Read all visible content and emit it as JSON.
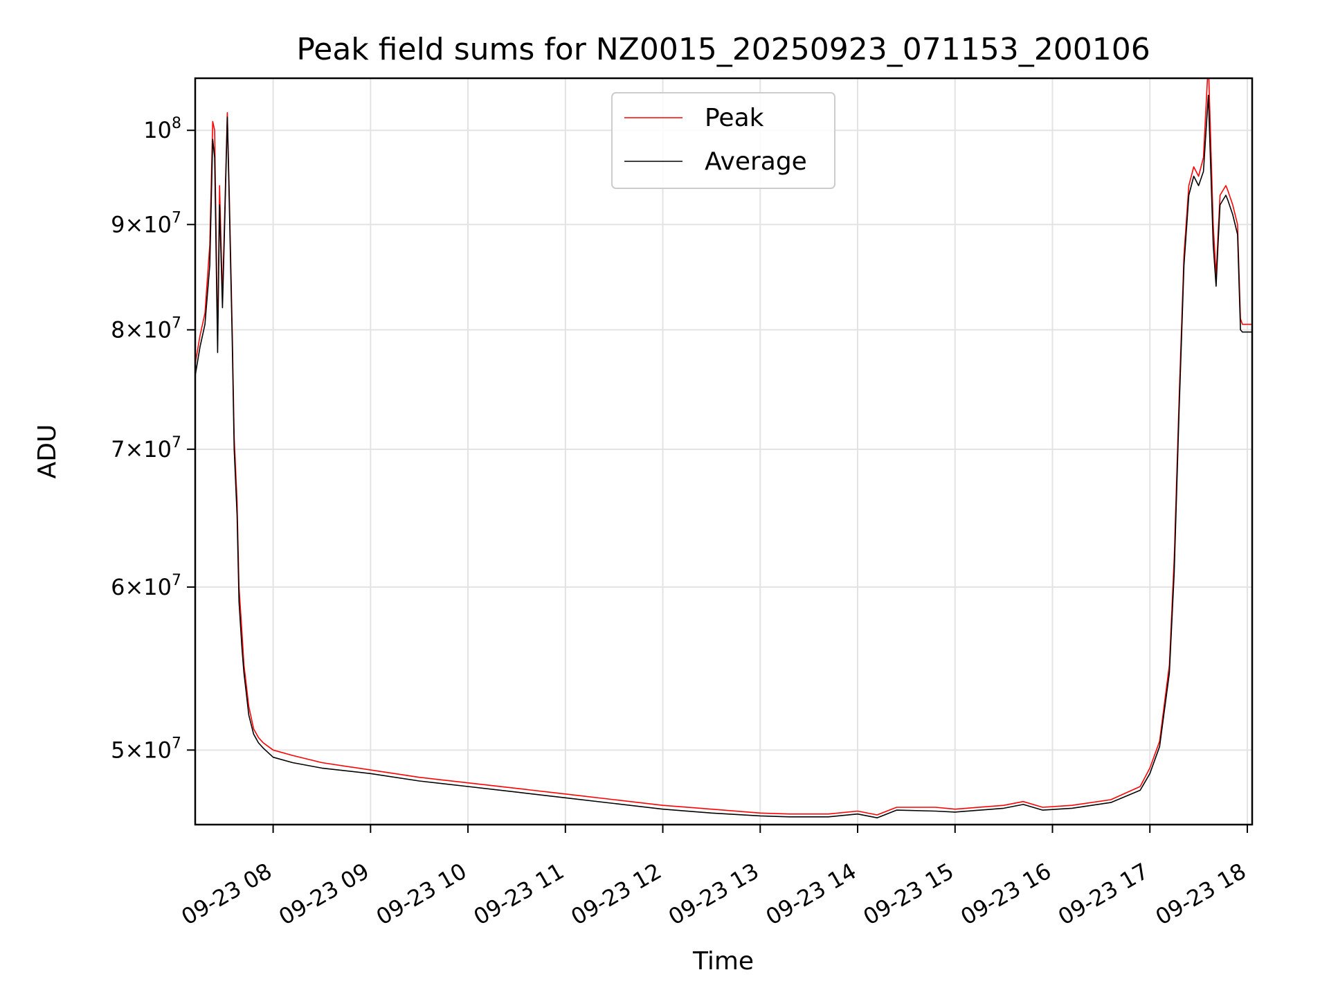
{
  "chart_data": {
    "type": "line",
    "title": "Peak field sums for NZ0015_20250923_071153_200106",
    "xlabel": "Time",
    "ylabel": "ADU",
    "yscale": "log",
    "xlim": [
      7.2,
      18.05
    ],
    "ylim": [
      46000000,
      106000000
    ],
    "grid": true,
    "legend_position": "top-center",
    "x_ticks": [
      {
        "value": 8,
        "label": "09-23 08"
      },
      {
        "value": 9,
        "label": "09-23 09"
      },
      {
        "value": 10,
        "label": "09-23 10"
      },
      {
        "value": 11,
        "label": "09-23 11"
      },
      {
        "value": 12,
        "label": "09-23 12"
      },
      {
        "value": 13,
        "label": "09-23 13"
      },
      {
        "value": 14,
        "label": "09-23 14"
      },
      {
        "value": 15,
        "label": "09-23 15"
      },
      {
        "value": 16,
        "label": "09-23 16"
      },
      {
        "value": 17,
        "label": "09-23 17"
      },
      {
        "value": 18,
        "label": "09-23 18"
      }
    ],
    "y_ticks": [
      {
        "value": 50000000,
        "mantissa": "5",
        "exponent": "7"
      },
      {
        "value": 60000000,
        "mantissa": "6",
        "exponent": "7"
      },
      {
        "value": 70000000,
        "mantissa": "7",
        "exponent": "7"
      },
      {
        "value": 80000000,
        "mantissa": "8",
        "exponent": "7"
      },
      {
        "value": 90000000,
        "mantissa": "9",
        "exponent": "7"
      },
      {
        "value": 100000000,
        "mantissa": "",
        "exponent": "8"
      }
    ],
    "series": [
      {
        "name": "Peak",
        "color": "#ff0000",
        "x": [
          7.2,
          7.25,
          7.3,
          7.35,
          7.38,
          7.4,
          7.43,
          7.45,
          7.48,
          7.5,
          7.53,
          7.55,
          7.58,
          7.6,
          7.63,
          7.65,
          7.68,
          7.7,
          7.72,
          7.75,
          7.8,
          7.85,
          7.9,
          8.0,
          8.2,
          8.5,
          9.0,
          9.5,
          10.0,
          10.5,
          11.0,
          11.5,
          12.0,
          12.5,
          13.0,
          13.3,
          13.7,
          14.0,
          14.2,
          14.4,
          14.8,
          15.0,
          15.5,
          15.7,
          15.9,
          16.2,
          16.6,
          16.9,
          17.0,
          17.1,
          17.2,
          17.25,
          17.3,
          17.35,
          17.4,
          17.45,
          17.5,
          17.55,
          17.6,
          17.65,
          17.68,
          17.7,
          17.72,
          17.75,
          17.78,
          17.8,
          17.85,
          17.9,
          17.93,
          17.95,
          17.98,
          18.05
        ],
        "values": [
          77000000,
          79500000,
          81500000,
          88000000,
          101000000,
          100000000,
          79000000,
          94000000,
          83000000,
          90000000,
          102000000,
          93000000,
          80000000,
          71000000,
          66000000,
          60000000,
          57000000,
          55000000,
          54000000,
          52500000,
          51200000,
          50700000,
          50400000,
          50000000,
          49700000,
          49300000,
          48900000,
          48500000,
          48200000,
          47900000,
          47600000,
          47300000,
          47000000,
          46800000,
          46600000,
          46550000,
          46550000,
          46700000,
          46500000,
          46900000,
          46900000,
          46800000,
          47000000,
          47200000,
          46900000,
          47000000,
          47300000,
          48000000,
          49000000,
          50500000,
          55000000,
          62000000,
          74000000,
          87000000,
          94000000,
          96000000,
          95000000,
          97000000,
          108000000,
          90000000,
          85000000,
          89000000,
          93000000,
          93500000,
          94000000,
          93500000,
          92000000,
          90000000,
          81000000,
          80500000,
          80500000,
          80500000
        ]
      },
      {
        "name": "Average",
        "color": "#000000",
        "x": [
          7.2,
          7.25,
          7.3,
          7.35,
          7.38,
          7.4,
          7.43,
          7.45,
          7.48,
          7.5,
          7.53,
          7.55,
          7.58,
          7.6,
          7.63,
          7.65,
          7.68,
          7.7,
          7.72,
          7.75,
          7.8,
          7.85,
          7.9,
          8.0,
          8.2,
          8.5,
          9.0,
          9.5,
          10.0,
          10.5,
          11.0,
          11.5,
          12.0,
          12.5,
          13.0,
          13.3,
          13.7,
          14.0,
          14.2,
          14.4,
          14.8,
          15.0,
          15.5,
          15.7,
          15.9,
          16.2,
          16.6,
          16.9,
          17.0,
          17.1,
          17.2,
          17.25,
          17.3,
          17.35,
          17.4,
          17.45,
          17.5,
          17.55,
          17.6,
          17.65,
          17.68,
          17.7,
          17.72,
          17.75,
          17.78,
          17.8,
          17.85,
          17.9,
          17.93,
          17.95,
          17.98,
          18.05
        ],
        "values": [
          76000000,
          78500000,
          80500000,
          86000000,
          99000000,
          97000000,
          78000000,
          92000000,
          82000000,
          89000000,
          101500000,
          92000000,
          79000000,
          70000000,
          65000000,
          59000000,
          56000000,
          54500000,
          53500000,
          52000000,
          50900000,
          50400000,
          50100000,
          49600000,
          49300000,
          49000000,
          48700000,
          48300000,
          48000000,
          47700000,
          47400000,
          47100000,
          46800000,
          46600000,
          46450000,
          46400000,
          46400000,
          46550000,
          46350000,
          46750000,
          46700000,
          46650000,
          46850000,
          47050000,
          46750000,
          46850000,
          47150000,
          47800000,
          48700000,
          50200000,
          54500000,
          61000000,
          73000000,
          86000000,
          93000000,
          95000000,
          94000000,
          95500000,
          104000000,
          88000000,
          84000000,
          88000000,
          92000000,
          92500000,
          93000000,
          92500000,
          91000000,
          89000000,
          80000000,
          79800000,
          79800000,
          79800000
        ]
      }
    ]
  }
}
